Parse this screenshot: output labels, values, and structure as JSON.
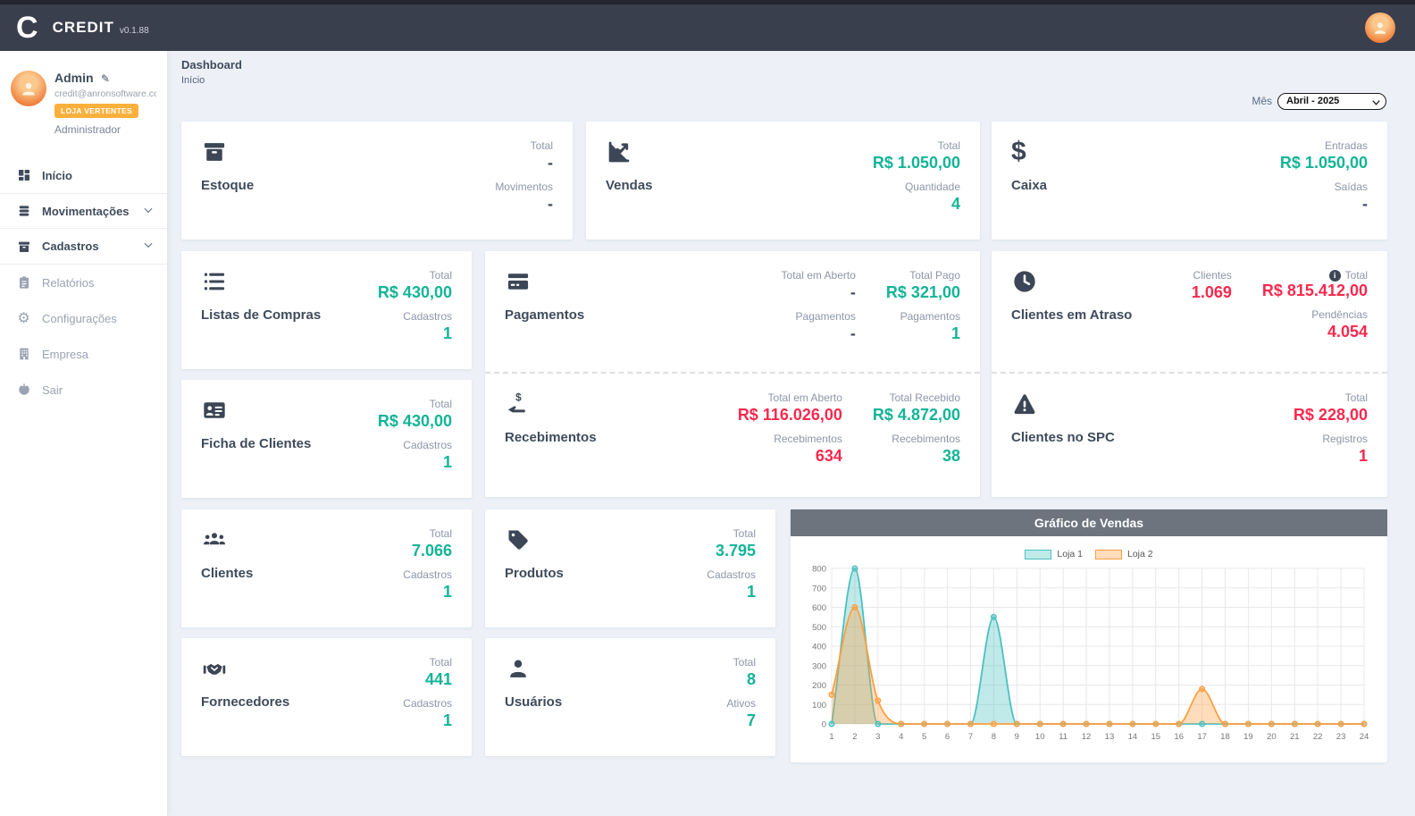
{
  "header": {
    "logo": "C",
    "app_name": "CREDIT",
    "version": "v0.1.88"
  },
  "sidebar": {
    "user": {
      "name": "Admin",
      "email": "credit@anronsoftware.co...",
      "badge": "LOJA VERTENTES",
      "role": "Administrador"
    },
    "items": [
      {
        "label": "Início"
      },
      {
        "label": "Movimentações"
      },
      {
        "label": "Cadastros"
      },
      {
        "label": "Relatórios"
      },
      {
        "label": "Configurações"
      },
      {
        "label": "Empresa"
      },
      {
        "label": "Sair"
      }
    ]
  },
  "breadcrumb": {
    "title": "Dashboard",
    "subtitle": "Início"
  },
  "filter": {
    "label": "Mês",
    "value": "Abril - 2025"
  },
  "colors": {
    "accent_green": "#13b497",
    "accent_red": "#f8294e",
    "badge_orange": "#fbb03c",
    "header_bg": "#3a3f4d",
    "chart_teal": "#4bc0c0",
    "chart_orange": "#ff9f40"
  },
  "cards": {
    "estoque": {
      "title": "Estoque",
      "s1_label": "Total",
      "s1_value": "-",
      "s2_label": "Movimentos",
      "s2_value": "-"
    },
    "vendas": {
      "title": "Vendas",
      "s1_label": "Total",
      "s1_value": "R$ 1.050,00",
      "s2_label": "Quantidade",
      "s2_value": "4"
    },
    "caixa": {
      "title": "Caixa",
      "s1_label": "Entradas",
      "s1_value": "R$ 1.050,00",
      "s2_label": "Saídas",
      "s2_value": "-"
    },
    "listas_compras": {
      "title": "Listas de Compras",
      "s1_label": "Total",
      "s1_value": "R$ 430,00",
      "s2_label": "Cadastros",
      "s2_value": "1"
    },
    "ficha_clientes": {
      "title": "Ficha de Clientes",
      "s1_label": "Total",
      "s1_value": "R$ 430,00",
      "s2_label": "Cadastros",
      "s2_value": "1"
    },
    "pagamentos": {
      "title": "Pagamentos",
      "a1_label": "Total em Aberto",
      "a1_value": "-",
      "a2_label": "Pagamentos",
      "a2_value": "-",
      "b1_label": "Total Pago",
      "b1_value": "R$ 321,00",
      "b2_label": "Pagamentos",
      "b2_value": "1"
    },
    "recebimentos": {
      "title": "Recebimentos",
      "a1_label": "Total em Aberto",
      "a1_value": "R$ 116.026,00",
      "a2_label": "Recebimentos",
      "a2_value": "634",
      "b1_label": "Total Recebido",
      "b1_value": "R$ 4.872,00",
      "b2_label": "Recebimentos",
      "b2_value": "38"
    },
    "clientes_atraso": {
      "title": "Clientes em Atraso",
      "a1_label": "Clientes",
      "a1_value": "1.069",
      "b1_label": "Total",
      "b1_value": "R$ 815.412,00",
      "b2_label": "Pendências",
      "b2_value": "4.054"
    },
    "clientes_spc": {
      "title": "Clientes no SPC",
      "s1_label": "Total",
      "s1_value": "R$ 228,00",
      "s2_label": "Registros",
      "s2_value": "1"
    },
    "clientes": {
      "title": "Clientes",
      "s1_label": "Total",
      "s1_value": "7.066",
      "s2_label": "Cadastros",
      "s2_value": "1"
    },
    "produtos": {
      "title": "Produtos",
      "s1_label": "Total",
      "s1_value": "3.795",
      "s2_label": "Cadastros",
      "s2_value": "1"
    },
    "fornecedores": {
      "title": "Fornecedores",
      "s1_label": "Total",
      "s1_value": "441",
      "s2_label": "Cadastros",
      "s2_value": "1"
    },
    "usuarios": {
      "title": "Usuários",
      "s1_label": "Total",
      "s1_value": "8",
      "s2_label": "Ativos",
      "s2_value": "7"
    }
  },
  "chart_data": {
    "type": "area",
    "title": "Gráfico de Vendas",
    "x": [
      1,
      2,
      3,
      4,
      5,
      6,
      7,
      8,
      9,
      10,
      11,
      12,
      13,
      14,
      15,
      16,
      17,
      18,
      19,
      20,
      21,
      22,
      23,
      24
    ],
    "series": [
      {
        "name": "Loja 1",
        "color": "#4bc0c0",
        "values": [
          0,
          800,
          0,
          0,
          0,
          0,
          0,
          550,
          0,
          0,
          0,
          0,
          0,
          0,
          0,
          0,
          0,
          0,
          0,
          0,
          0,
          0,
          0,
          0
        ]
      },
      {
        "name": "Loja 2",
        "color": "#ff9f40",
        "values": [
          150,
          600,
          120,
          0,
          0,
          0,
          0,
          0,
          0,
          0,
          0,
          0,
          0,
          0,
          0,
          0,
          180,
          0,
          0,
          0,
          0,
          0,
          0,
          0
        ]
      }
    ],
    "ylim": [
      0,
      800
    ],
    "ytick": 100,
    "xlabel": "",
    "ylabel": "",
    "grid": true,
    "legend_position": "top"
  }
}
